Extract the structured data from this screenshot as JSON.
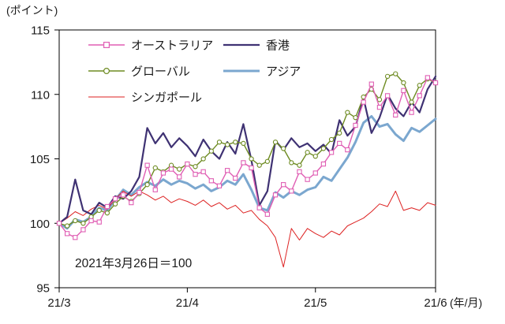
{
  "chart": {
    "y_unit_label": "(ポイント)",
    "x_unit_label": "(年/月)",
    "annotation": "2021年3月26日＝100"
  },
  "chart_data": {
    "type": "line",
    "title": "",
    "xlabel": "(年/月)",
    "ylabel": "(ポイント)",
    "ylim": [
      95,
      115
    ],
    "yticks": [
      95,
      100,
      105,
      110,
      115
    ],
    "xticks": [
      "21/3",
      "21/4",
      "21/5",
      "21/6"
    ],
    "xtick_positions": [
      0,
      16,
      32,
      47
    ],
    "grid": false,
    "legend_position": "top-left-inside",
    "annotation": "2021年3月26日＝100",
    "draw_order": [
      3,
      4,
      1,
      2,
      0
    ],
    "legend_layout": [
      [
        "オーストラリア",
        "香港"
      ],
      [
        "グローバル",
        "アジア"
      ],
      [
        "シンガポール"
      ]
    ],
    "series": [
      {
        "id": "australia",
        "name": "オーストラリア",
        "color": "#e05fb4",
        "marker": "square",
        "width": 1.4,
        "values": [
          100.0,
          99.2,
          98.9,
          99.5,
          100.2,
          100.1,
          101.3,
          101.9,
          102.2,
          101.6,
          102.4,
          104.5,
          102.6,
          103.9,
          104.2,
          103.6,
          104.6,
          103.8,
          104.0,
          103.3,
          102.9,
          104.1,
          103.5,
          104.7,
          104.3,
          101.2,
          100.7,
          102.2,
          103.0,
          102.5,
          104.0,
          103.4,
          103.9,
          104.6,
          105.5,
          106.2,
          105.7,
          107.6,
          109.4,
          110.8,
          109.0,
          109.9,
          108.4,
          110.3,
          108.6,
          109.9,
          111.3,
          110.9
        ]
      },
      {
        "id": "hong-kong",
        "name": "香港",
        "color": "#3f3273",
        "marker": "none",
        "width": 2.2,
        "values": [
          100.0,
          100.5,
          103.4,
          101.0,
          100.7,
          101.6,
          101.2,
          102.1,
          101.9,
          102.5,
          103.6,
          107.4,
          106.2,
          107.0,
          105.9,
          106.6,
          106.0,
          105.2,
          106.5,
          105.6,
          105.0,
          106.3,
          105.4,
          107.7,
          104.9,
          101.4,
          102.5,
          106.4,
          105.7,
          106.6,
          105.9,
          106.2,
          105.6,
          106.1,
          105.4,
          108.0,
          106.8,
          107.5,
          109.7,
          107.0,
          108.2,
          110.0,
          108.9,
          108.3,
          109.4,
          108.6,
          110.4,
          111.4
        ]
      },
      {
        "id": "global",
        "name": "グローバル",
        "color": "#6e8b22",
        "marker": "circle",
        "width": 1.4,
        "values": [
          100.0,
          99.8,
          100.2,
          100.0,
          100.5,
          101.0,
          100.8,
          101.5,
          102.1,
          101.7,
          102.3,
          103.0,
          104.3,
          104.0,
          104.5,
          104.2,
          104.6,
          104.4,
          105.0,
          105.6,
          106.3,
          106.1,
          106.3,
          106.2,
          105.0,
          104.5,
          104.8,
          106.3,
          105.8,
          104.7,
          104.5,
          105.5,
          105.2,
          105.8,
          106.5,
          107.0,
          108.6,
          108.2,
          109.8,
          110.4,
          109.6,
          111.4,
          111.6,
          110.9,
          109.4,
          110.7,
          111.2,
          110.9
        ]
      },
      {
        "id": "asia",
        "name": "アジア",
        "color": "#7ba7cf",
        "marker": "none",
        "width": 3.0,
        "values": [
          100.0,
          99.6,
          100.3,
          100.1,
          100.5,
          101.2,
          101.0,
          101.8,
          102.6,
          102.2,
          102.8,
          103.2,
          102.9,
          103.4,
          103.0,
          103.3,
          103.1,
          102.7,
          103.0,
          102.5,
          102.8,
          103.3,
          103.0,
          103.8,
          102.6,
          101.2,
          101.0,
          102.4,
          102.0,
          102.5,
          102.2,
          102.6,
          102.8,
          103.6,
          103.3,
          104.2,
          105.1,
          106.3,
          107.8,
          108.3,
          107.5,
          107.7,
          106.9,
          106.4,
          107.4,
          107.1,
          107.6,
          108.1
        ]
      },
      {
        "id": "singapore",
        "name": "シンガポール",
        "color": "#dd2222",
        "marker": "none",
        "width": 1.0,
        "values": [
          100.0,
          100.4,
          100.9,
          100.6,
          101.1,
          101.4,
          101.1,
          101.9,
          102.5,
          102.1,
          102.5,
          102.2,
          101.8,
          102.1,
          101.6,
          101.9,
          101.7,
          101.4,
          101.8,
          101.3,
          101.6,
          101.1,
          101.4,
          100.8,
          101.0,
          100.3,
          99.8,
          98.9,
          96.6,
          99.6,
          98.7,
          99.6,
          99.2,
          98.9,
          99.4,
          99.1,
          99.8,
          100.1,
          100.4,
          100.9,
          101.5,
          101.3,
          102.5,
          101.0,
          101.2,
          101.0,
          101.6,
          101.4
        ]
      }
    ]
  }
}
